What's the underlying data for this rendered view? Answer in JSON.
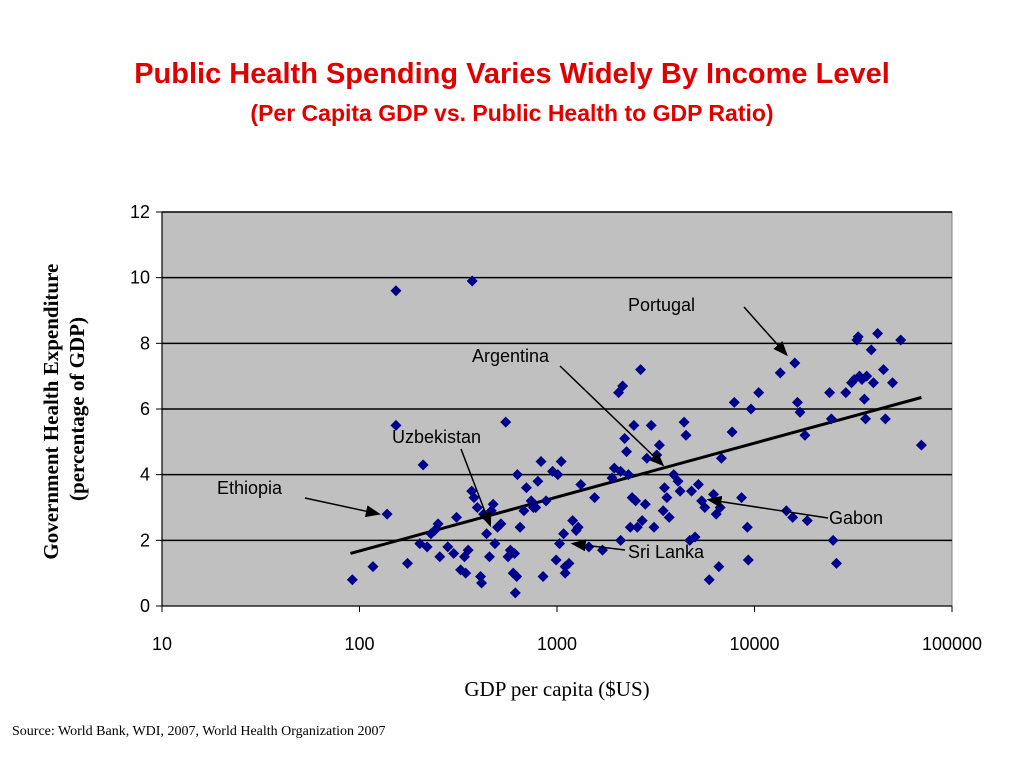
{
  "title": "Public Health Spending Varies Widely By Income Level",
  "subtitle": "(Per Capita GDP vs. Public Health to GDP Ratio)",
  "source": "Source: World Bank, WDI, 2007, World Health Organization 2007",
  "colors": {
    "title": "#e00000",
    "plot_bg": "#c0c0c0",
    "marker": "#00008b",
    "trend": "#000000"
  },
  "chart_data": {
    "type": "scatter",
    "xlabel": "GDP per capita ($US)",
    "ylabel": "Government Health Expenditure (percentage of GDP)",
    "ylabel_lines": [
      "Government Health Expenditure",
      "(percentage of GDP)"
    ],
    "x_scale": "log",
    "xlim": [
      10,
      100000
    ],
    "ylim": [
      0,
      12
    ],
    "x_ticks": [
      10,
      100,
      1000,
      10000,
      100000
    ],
    "x_tick_labels": [
      "10",
      "100",
      "1000",
      "10000",
      "100000"
    ],
    "y_ticks": [
      0,
      2,
      4,
      6,
      8,
      10,
      12
    ],
    "y_tick_labels": [
      "0",
      "2",
      "4",
      "6",
      "8",
      "10",
      "12"
    ],
    "grid": "horizontal",
    "legend": "none",
    "trendline": {
      "x": [
        90,
        70000
      ],
      "y": [
        1.6,
        6.35
      ]
    },
    "points": [
      [
        92,
        0.8
      ],
      [
        117,
        1.2
      ],
      [
        153,
        9.6
      ],
      [
        153,
        5.5
      ],
      [
        138,
        2.8
      ],
      [
        175,
        1.3
      ],
      [
        202,
        1.9
      ],
      [
        210,
        4.3
      ],
      [
        220,
        1.8
      ],
      [
        230,
        2.2
      ],
      [
        240,
        2.3
      ],
      [
        250,
        2.5
      ],
      [
        255,
        1.5
      ],
      [
        280,
        1.8
      ],
      [
        300,
        1.6
      ],
      [
        310,
        2.7
      ],
      [
        325,
        1.1
      ],
      [
        340,
        1.5
      ],
      [
        345,
        1.0
      ],
      [
        355,
        1.7
      ],
      [
        370,
        3.5
      ],
      [
        372,
        9.9
      ],
      [
        380,
        3.3
      ],
      [
        395,
        3.0
      ],
      [
        410,
        0.9
      ],
      [
        415,
        0.7
      ],
      [
        425,
        2.8
      ],
      [
        440,
        2.2
      ],
      [
        455,
        1.5
      ],
      [
        465,
        2.9
      ],
      [
        475,
        3.1
      ],
      [
        485,
        1.9
      ],
      [
        500,
        2.4
      ],
      [
        520,
        2.5
      ],
      [
        550,
        5.6
      ],
      [
        565,
        1.5
      ],
      [
        580,
        1.7
      ],
      [
        600,
        1.0
      ],
      [
        610,
        1.6
      ],
      [
        615,
        0.4
      ],
      [
        625,
        0.9
      ],
      [
        630,
        4.0
      ],
      [
        650,
        2.4
      ],
      [
        680,
        2.9
      ],
      [
        700,
        3.6
      ],
      [
        740,
        3.2
      ],
      [
        760,
        3.0
      ],
      [
        780,
        3.0
      ],
      [
        800,
        3.8
      ],
      [
        830,
        4.4
      ],
      [
        850,
        0.9
      ],
      [
        880,
        3.2
      ],
      [
        950,
        4.1
      ],
      [
        990,
        1.4
      ],
      [
        1010,
        4.0
      ],
      [
        1030,
        1.9
      ],
      [
        1050,
        4.4
      ],
      [
        1080,
        2.2
      ],
      [
        1100,
        1.2
      ],
      [
        1100,
        1.0
      ],
      [
        1150,
        1.3
      ],
      [
        1200,
        2.6
      ],
      [
        1250,
        2.3
      ],
      [
        1280,
        2.4
      ],
      [
        1320,
        3.7
      ],
      [
        1450,
        1.8
      ],
      [
        1550,
        3.3
      ],
      [
        1700,
        1.7
      ],
      [
        1900,
        3.9
      ],
      [
        1950,
        4.2
      ],
      [
        2050,
        6.5
      ],
      [
        2100,
        4.1
      ],
      [
        2100,
        2.0
      ],
      [
        2150,
        6.7
      ],
      [
        2200,
        5.1
      ],
      [
        2250,
        4.7
      ],
      [
        2300,
        4.0
      ],
      [
        2350,
        2.4
      ],
      [
        2400,
        3.3
      ],
      [
        2450,
        5.5
      ],
      [
        2500,
        3.2
      ],
      [
        2550,
        2.4
      ],
      [
        2650,
        7.2
      ],
      [
        2700,
        2.6
      ],
      [
        2800,
        3.1
      ],
      [
        2850,
        4.5
      ],
      [
        3000,
        5.5
      ],
      [
        3100,
        2.4
      ],
      [
        3200,
        4.6
      ],
      [
        3300,
        4.9
      ],
      [
        3450,
        2.9
      ],
      [
        3500,
        3.6
      ],
      [
        3600,
        3.3
      ],
      [
        3700,
        2.7
      ],
      [
        3900,
        4.0
      ],
      [
        4100,
        3.8
      ],
      [
        4200,
        3.5
      ],
      [
        4400,
        5.6
      ],
      [
        4500,
        5.2
      ],
      [
        4700,
        2.0
      ],
      [
        4800,
        3.5
      ],
      [
        5000,
        2.1
      ],
      [
        5200,
        3.7
      ],
      [
        5400,
        3.2
      ],
      [
        5600,
        3.0
      ],
      [
        5900,
        0.8
      ],
      [
        6200,
        3.4
      ],
      [
        6400,
        2.8
      ],
      [
        6600,
        1.2
      ],
      [
        6700,
        3.0
      ],
      [
        6800,
        4.5
      ],
      [
        7700,
        5.3
      ],
      [
        7900,
        6.2
      ],
      [
        8600,
        3.3
      ],
      [
        9200,
        2.4
      ],
      [
        9300,
        1.4
      ],
      [
        9600,
        6.0
      ],
      [
        10500,
        6.5
      ],
      [
        13500,
        7.1
      ],
      [
        14500,
        2.9
      ],
      [
        15600,
        2.7
      ],
      [
        16000,
        7.4
      ],
      [
        16500,
        6.2
      ],
      [
        17000,
        5.9
      ],
      [
        18000,
        5.2
      ],
      [
        18500,
        2.6
      ],
      [
        24000,
        6.5
      ],
      [
        24500,
        5.7
      ],
      [
        25000,
        2.0
      ],
      [
        26000,
        1.3
      ],
      [
        29000,
        6.5
      ],
      [
        31000,
        6.8
      ],
      [
        32000,
        6.9
      ],
      [
        33000,
        8.1
      ],
      [
        33500,
        8.2
      ],
      [
        34000,
        7.0
      ],
      [
        35000,
        6.9
      ],
      [
        36000,
        6.3
      ],
      [
        36500,
        5.7
      ],
      [
        37000,
        7.0
      ],
      [
        39000,
        7.8
      ],
      [
        40000,
        6.8
      ],
      [
        42000,
        8.3
      ],
      [
        45000,
        7.2
      ],
      [
        46000,
        5.7
      ],
      [
        50000,
        6.8
      ],
      [
        55000,
        8.1
      ],
      [
        70000,
        4.9
      ]
    ],
    "annotations": [
      {
        "label": "Portugal",
        "x": 16000,
        "y": 7.4
      },
      {
        "label": "Argentina",
        "x": 3700,
        "y": 4.1
      },
      {
        "label": "Uzbekistan",
        "x": 460,
        "y": 2.2
      },
      {
        "label": "Ethiopia",
        "x": 140,
        "y": 2.8
      },
      {
        "label": "Gabon",
        "x": 5300,
        "y": 3.3
      },
      {
        "label": "Sri Lanka",
        "x": 1100,
        "y": 1.9
      }
    ]
  }
}
